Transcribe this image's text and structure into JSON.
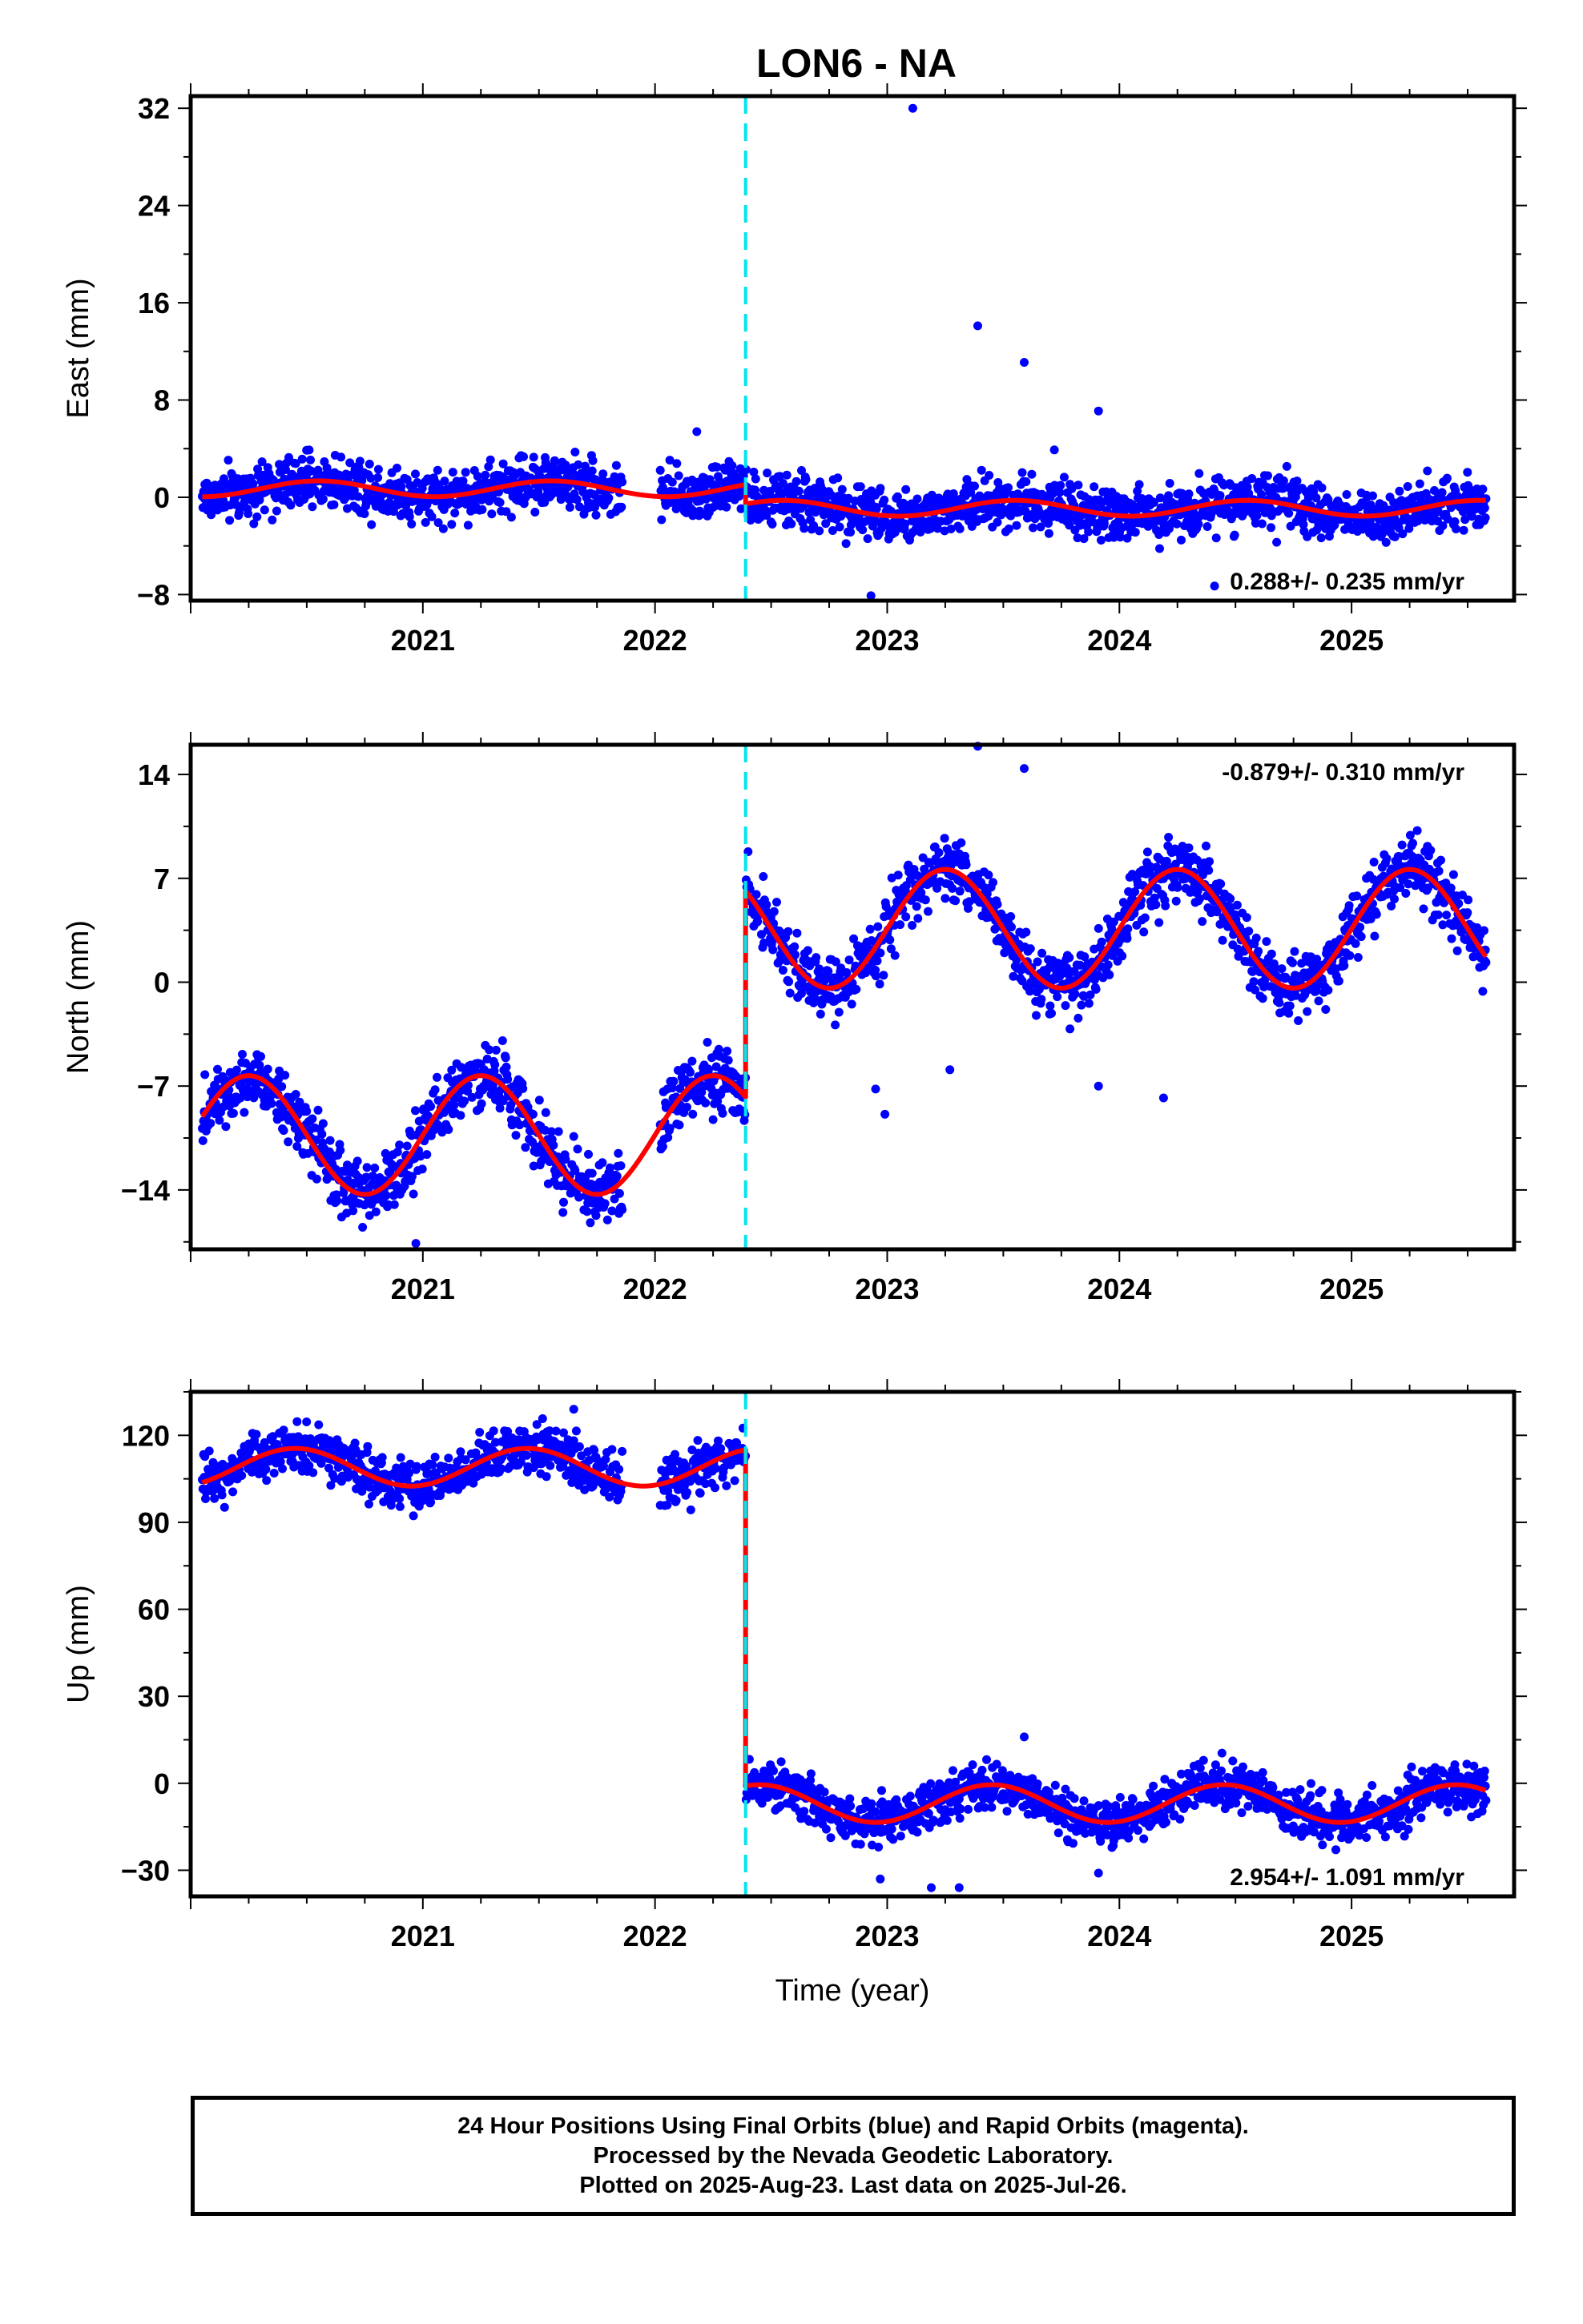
{
  "chart_data": [
    {
      "type": "scatter",
      "title": "LON6 - NA",
      "ylabel": "East (mm)",
      "xlabel": "",
      "xlim": [
        2020.0,
        2025.7
      ],
      "ylim": [
        -8.5,
        33.0
      ],
      "yticks": [
        -8,
        0,
        8,
        16,
        24,
        32
      ],
      "xticks": [
        2021,
        2022,
        2023,
        2024,
        2025
      ],
      "grid": false,
      "offset_epoch": 2022.39,
      "rate_label": "0.288+/- 0.235 mm/yr",
      "rate_position": "bottom-right",
      "model": {
        "pre_mean": 0.7,
        "post_mean": -0.9,
        "amp": 0.65,
        "phase": 0.55
      },
      "outliers": [
        [
          2023.11,
          32.0
        ],
        [
          2023.39,
          14.1
        ],
        [
          2023.59,
          11.1
        ],
        [
          2023.91,
          7.1
        ],
        [
          2022.18,
          5.4
        ],
        [
          2022.93,
          -8.1
        ],
        [
          2024.41,
          -7.3
        ],
        [
          2023.72,
          3.9
        ]
      ],
      "series": [
        {
          "name": "Final Orbits",
          "color": "#0000ff",
          "marker": "dot",
          "x_range": [
            2020.05,
            2025.58
          ],
          "scatter_sd": 1.1
        },
        {
          "name": "Model",
          "color": "#ff0000",
          "marker": "line"
        }
      ],
      "offset_line_color": "#00e5ee"
    },
    {
      "type": "scatter",
      "title": "",
      "ylabel": "North (mm)",
      "xlabel": "",
      "xlim": [
        2020.0,
        2025.7
      ],
      "ylim": [
        -18.0,
        16.0
      ],
      "yticks": [
        -14,
        -7,
        0,
        7,
        14
      ],
      "xticks": [
        2021,
        2022,
        2023,
        2024,
        2025
      ],
      "grid": false,
      "offset_epoch": 2022.39,
      "rate_label": "-0.879+/- 0.310 mm/yr",
      "rate_position": "top-right",
      "model": {
        "pre_mean": -10.3,
        "post_mean": 3.6,
        "amp": 4.0,
        "phase": 0.25
      },
      "outliers": [
        [
          2023.59,
          14.4
        ],
        [
          2023.39,
          15.9
        ],
        [
          2022.99,
          -8.9
        ],
        [
          2022.95,
          -7.2
        ],
        [
          2023.27,
          -5.9
        ],
        [
          2023.91,
          -7.0
        ],
        [
          2024.19,
          -7.8
        ],
        [
          2020.97,
          -17.6
        ]
      ],
      "series": [
        {
          "name": "Final Orbits",
          "color": "#0000ff",
          "marker": "dot",
          "x_range": [
            2020.05,
            2025.58
          ],
          "scatter_sd": 1.1
        },
        {
          "name": "Model",
          "color": "#ff0000",
          "marker": "line"
        }
      ],
      "offset_line_color": "#00e5ee"
    },
    {
      "type": "scatter",
      "title": "",
      "ylabel": "Up (mm)",
      "xlabel": "Time (year)",
      "xlim": [
        2020.0,
        2025.7
      ],
      "ylim": [
        -39.0,
        135.0
      ],
      "yticks": [
        -30,
        0,
        30,
        60,
        90,
        120
      ],
      "xticks": [
        2021,
        2022,
        2023,
        2024,
        2025
      ],
      "grid": false,
      "offset_epoch": 2022.39,
      "rate_label": "2.954+/- 1.091 mm/yr",
      "rate_position": "bottom-right",
      "model": {
        "pre_mean": 109.0,
        "post_mean": -7.0,
        "amp": 6.5,
        "phase": 0.45
      },
      "outliers": [
        [
          2023.59,
          16.0
        ],
        [
          2023.19,
          -36.0
        ],
        [
          2023.31,
          -36.0
        ],
        [
          2022.97,
          -33.0
        ],
        [
          2023.91,
          -31.0
        ],
        [
          2021.65,
          129.0
        ]
      ],
      "series": [
        {
          "name": "Final Orbits",
          "color": "#0000ff",
          "marker": "dot",
          "x_range": [
            2020.05,
            2025.58
          ],
          "scatter_sd": 4.2
        },
        {
          "name": "Model",
          "color": "#ff0000",
          "marker": "line"
        }
      ],
      "offset_line_color": "#00e5ee"
    }
  ],
  "footer": {
    "line1": "24 Hour Positions Using Final Orbits (blue) and Rapid Orbits (magenta).",
    "line2": "Processed by the Nevada Geodetic Laboratory.",
    "line3": "Plotted on 2025-Aug-23. Last data on 2025-Jul-26."
  }
}
